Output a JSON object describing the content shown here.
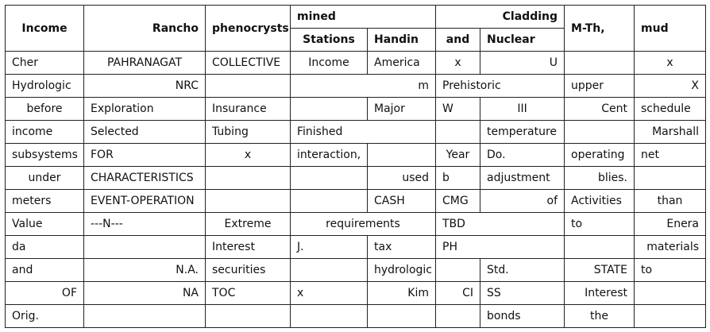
{
  "header": {
    "income": "Income",
    "rancho": "Rancho",
    "phenocrysts": "phenocrysts",
    "mined": "mined",
    "stations": "Stations",
    "handin": "Handin",
    "cladding": "Cladding",
    "and": "and",
    "nuclear": "Nuclear",
    "mth": "M-Th,",
    "mud": "mud"
  },
  "rows": [
    [
      {
        "t": "Cher",
        "a": "l"
      },
      {
        "t": "PAHRANAGAT",
        "a": "c"
      },
      {
        "t": "COLLECTIVE",
        "a": "l"
      },
      {
        "t": "Income",
        "a": "c"
      },
      {
        "t": "America",
        "a": "l"
      },
      {
        "t": "x",
        "a": "c"
      },
      {
        "t": "U",
        "a": "r"
      },
      {
        "t": "",
        "a": "l"
      },
      {
        "t": "x",
        "a": "c"
      }
    ],
    [
      {
        "t": "Hydrologic",
        "a": "l"
      },
      {
        "t": "NRC",
        "a": "r"
      },
      {
        "t": "",
        "a": "l"
      },
      {
        "t": "m",
        "a": "r",
        "span": 2
      },
      {
        "t": "Prehistoric",
        "a": "l",
        "span": 2
      },
      {
        "t": "upper",
        "a": "l"
      },
      {
        "t": "X",
        "a": "r"
      }
    ],
    [
      {
        "t": "before",
        "a": "c"
      },
      {
        "t": "Exploration",
        "a": "l"
      },
      {
        "t": "Insurance",
        "a": "l"
      },
      {
        "t": "",
        "a": "l"
      },
      {
        "t": "Major",
        "a": "l"
      },
      {
        "t": "W",
        "a": "l"
      },
      {
        "t": "III",
        "a": "c"
      },
      {
        "t": "Cent",
        "a": "r"
      },
      {
        "t": "schedule",
        "a": "l"
      }
    ],
    [
      {
        "t": "income",
        "a": "l"
      },
      {
        "t": "Selected",
        "a": "l"
      },
      {
        "t": "Tubing",
        "a": "l"
      },
      {
        "t": "Finished",
        "a": "l",
        "span": 2
      },
      {
        "t": "",
        "a": "l"
      },
      {
        "t": "temperature",
        "a": "l"
      },
      {
        "t": "",
        "a": "l"
      },
      {
        "t": "Marshall",
        "a": "r"
      }
    ],
    [
      {
        "t": "subsystems",
        "a": "l"
      },
      {
        "t": "FOR",
        "a": "l"
      },
      {
        "t": "x",
        "a": "c"
      },
      {
        "t": "interaction,",
        "a": "l"
      },
      {
        "t": "",
        "a": "l"
      },
      {
        "t": "Year",
        "a": "c"
      },
      {
        "t": "Do.",
        "a": "l"
      },
      {
        "t": "operating",
        "a": "l"
      },
      {
        "t": "net",
        "a": "l"
      }
    ],
    [
      {
        "t": "under",
        "a": "c"
      },
      {
        "t": "CHARACTERISTICS",
        "a": "l"
      },
      {
        "t": "",
        "a": "l"
      },
      {
        "t": "",
        "a": "l"
      },
      {
        "t": "used",
        "a": "r"
      },
      {
        "t": "b",
        "a": "l"
      },
      {
        "t": "adjustment",
        "a": "l"
      },
      {
        "t": "blies.",
        "a": "r"
      },
      {
        "t": "",
        "a": "l"
      }
    ],
    [
      {
        "t": "meters",
        "a": "l"
      },
      {
        "t": "EVENT-OPERATION",
        "a": "l"
      },
      {
        "t": "",
        "a": "l"
      },
      {
        "t": "",
        "a": "l"
      },
      {
        "t": "CASH",
        "a": "l"
      },
      {
        "t": "CMG",
        "a": "l"
      },
      {
        "t": "of",
        "a": "r"
      },
      {
        "t": "Activities",
        "a": "l"
      },
      {
        "t": "than",
        "a": "c"
      }
    ],
    [
      {
        "t": "Value",
        "a": "l"
      },
      {
        "t": "---N---",
        "a": "l"
      },
      {
        "t": "Extreme",
        "a": "c"
      },
      {
        "t": "requirements",
        "a": "c",
        "span": 2
      },
      {
        "t": "TBD",
        "a": "l",
        "span": 2
      },
      {
        "t": "to",
        "a": "l"
      },
      {
        "t": "Enera",
        "a": "r"
      }
    ],
    [
      {
        "t": "da",
        "a": "l"
      },
      {
        "t": "",
        "a": "l"
      },
      {
        "t": "Interest",
        "a": "l"
      },
      {
        "t": "J.",
        "a": "l"
      },
      {
        "t": "tax",
        "a": "l"
      },
      {
        "t": "PH",
        "a": "l",
        "span": 2
      },
      {
        "t": "",
        "a": "l"
      },
      {
        "t": "materials",
        "a": "r"
      }
    ],
    [
      {
        "t": "and",
        "a": "l"
      },
      {
        "t": "N.A.",
        "a": "r"
      },
      {
        "t": "securities",
        "a": "l"
      },
      {
        "t": "",
        "a": "l"
      },
      {
        "t": "hydrologic",
        "a": "l"
      },
      {
        "t": "",
        "a": "l"
      },
      {
        "t": "Std.",
        "a": "l"
      },
      {
        "t": "STATE",
        "a": "r"
      },
      {
        "t": "to",
        "a": "l"
      }
    ],
    [
      {
        "t": "OF",
        "a": "r"
      },
      {
        "t": "NA",
        "a": "r"
      },
      {
        "t": "TOC",
        "a": "l"
      },
      {
        "t": "x",
        "a": "l"
      },
      {
        "t": "Kim",
        "a": "r"
      },
      {
        "t": "CI",
        "a": "r"
      },
      {
        "t": "SS",
        "a": "l"
      },
      {
        "t": "Interest",
        "a": "r"
      },
      {
        "t": "",
        "a": "l"
      }
    ],
    [
      {
        "t": "Orig.",
        "a": "l"
      },
      {
        "t": "",
        "a": "l"
      },
      {
        "t": "",
        "a": "l"
      },
      {
        "t": "",
        "a": "l"
      },
      {
        "t": "",
        "a": "l"
      },
      {
        "t": "",
        "a": "l"
      },
      {
        "t": "bonds",
        "a": "l"
      },
      {
        "t": "the",
        "a": "c"
      },
      {
        "t": "",
        "a": "l"
      }
    ]
  ]
}
